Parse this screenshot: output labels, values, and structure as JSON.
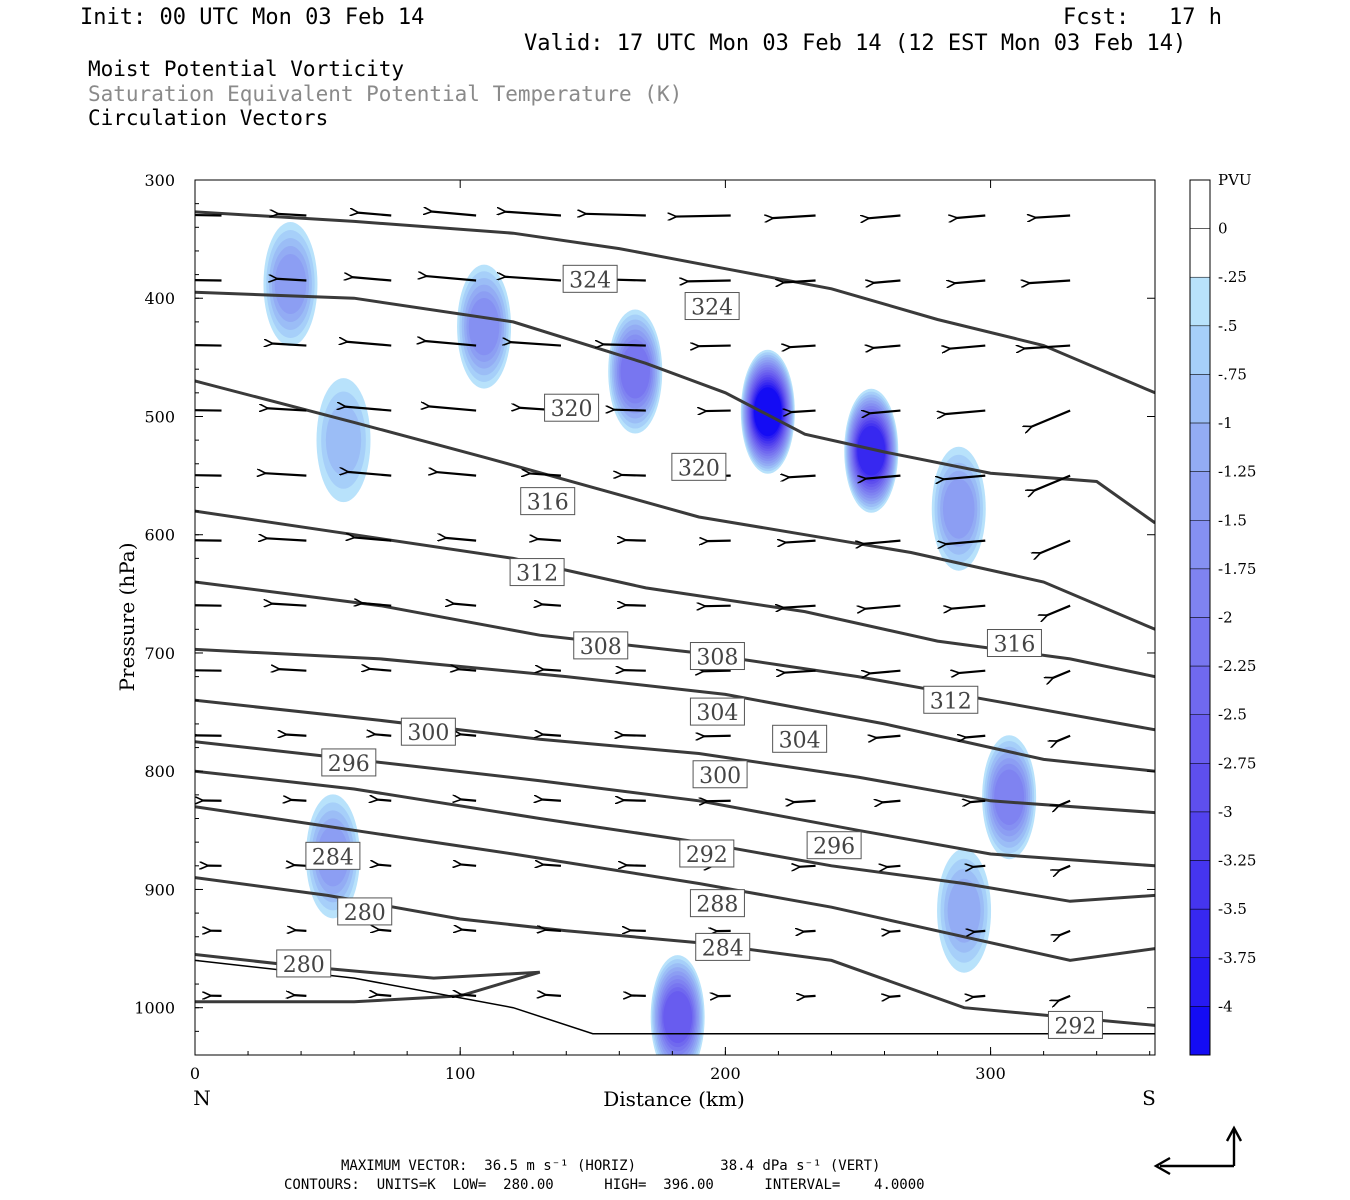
{
  "header": {
    "init": "Init: 00 UTC Mon 03 Feb 14",
    "fcst": "Fcst:   17 h",
    "valid": "Valid: 17 UTC Mon 03 Feb 14 (12 EST Mon 03 Feb 14)"
  },
  "fields": {
    "field1": "Moist Potential Vorticity",
    "field2": "Saturation Equivalent Potential Temperature (K)",
    "field3": "Circulation Vectors"
  },
  "footer": {
    "line1": "MAXIMUM VECTOR:  36.5 m s⁻¹ (HORIZ)          38.4 dPa s⁻¹ (VERT)",
    "line2": "CONTOURS:  UNITS=K  LOW=  280.00      HIGH=  396.00      INTERVAL=    4.0000"
  },
  "chart_data": {
    "type": "heatmap",
    "xlabel": "Distance (km)",
    "ylabel": "Pressure (hPa)",
    "x_ticks": [
      "0",
      "100",
      "200",
      "300"
    ],
    "y_ticks": [
      "300",
      "400",
      "500",
      "600",
      "700",
      "800",
      "900",
      "1000"
    ],
    "xlim": [
      0,
      362
    ],
    "ylim": [
      300,
      1040
    ],
    "x_end_left": "N",
    "x_end_right": "S",
    "colorbar": {
      "unit": "PVU",
      "labels": [
        "0",
        "-.25",
        "-.5",
        "-.75",
        "-1",
        "-1.25",
        "-1.5",
        "-1.75",
        "-2",
        "-2.25",
        "-2.5",
        "-2.75",
        "-3",
        "-3.25",
        "-3.5",
        "-3.75",
        "-4"
      ],
      "colors": [
        "#ffffff",
        "#ffffff",
        "#b8e2fb",
        "#a6cff9",
        "#9bbdf6",
        "#93acf4",
        "#8c9ef3",
        "#8590f2",
        "#7f83f1",
        "#7876f0",
        "#7069ef",
        "#685cef",
        "#5e4fee",
        "#5242ee",
        "#4535ef",
        "#3728f0",
        "#271af2",
        "#140cf4"
      ]
    },
    "contour_labels": [
      {
        "label": "324",
        "x": 149,
        "p": 384
      },
      {
        "label": "324",
        "x": 195,
        "p": 407
      },
      {
        "label": "320",
        "x": 142,
        "p": 493
      },
      {
        "label": "320",
        "x": 190,
        "p": 543
      },
      {
        "label": "316",
        "x": 133,
        "p": 572
      },
      {
        "label": "312",
        "x": 129,
        "p": 632
      },
      {
        "label": "308",
        "x": 153,
        "p": 694
      },
      {
        "label": "308",
        "x": 197,
        "p": 703
      },
      {
        "label": "316",
        "x": 309,
        "p": 692
      },
      {
        "label": "312",
        "x": 285,
        "p": 740
      },
      {
        "label": "304",
        "x": 197,
        "p": 750
      },
      {
        "label": "304",
        "x": 228,
        "p": 773
      },
      {
        "label": "300",
        "x": 88,
        "p": 767
      },
      {
        "label": "296",
        "x": 58,
        "p": 793
      },
      {
        "label": "300",
        "x": 198,
        "p": 803
      },
      {
        "label": "296",
        "x": 241,
        "p": 863
      },
      {
        "label": "292",
        "x": 193,
        "p": 870
      },
      {
        "label": "284",
        "x": 52,
        "p": 872
      },
      {
        "label": "280",
        "x": 64,
        "p": 919
      },
      {
        "label": "288",
        "x": 197,
        "p": 912
      },
      {
        "label": "284",
        "x": 199,
        "p": 949
      },
      {
        "label": "280",
        "x": 41,
        "p": 963
      },
      {
        "label": "292",
        "x": 332,
        "p": 1015
      }
    ],
    "mpv_blobs": [
      {
        "x": 216,
        "p": 496,
        "min": -4.0
      },
      {
        "x": 255,
        "p": 529,
        "min": -3.5
      },
      {
        "x": 166,
        "p": 462,
        "min": -2.0
      },
      {
        "x": 109,
        "p": 424,
        "min": -1.5
      },
      {
        "x": 36,
        "p": 388,
        "min": -1.25
      },
      {
        "x": 288,
        "p": 578,
        "min": -1.25
      },
      {
        "x": 307,
        "p": 822,
        "min": -1.75
      },
      {
        "x": 290,
        "p": 918,
        "min": -1.0
      },
      {
        "x": 182,
        "p": 1008,
        "min": -2.5
      },
      {
        "x": 52,
        "p": 872,
        "min": -1.25
      },
      {
        "x": 56,
        "p": 520,
        "min": -0.75
      }
    ]
  }
}
